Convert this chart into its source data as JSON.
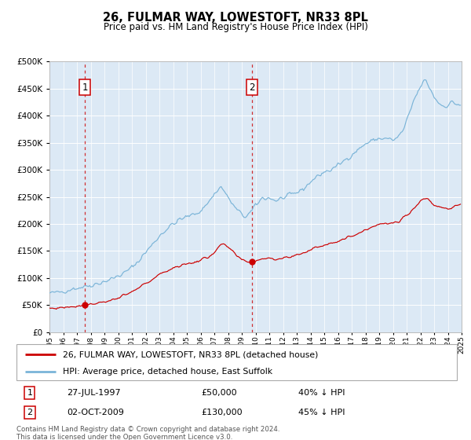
{
  "title": "26, FULMAR WAY, LOWESTOFT, NR33 8PL",
  "subtitle": "Price paid vs. HM Land Registry's House Price Index (HPI)",
  "legend_line1": "26, FULMAR WAY, LOWESTOFT, NR33 8PL (detached house)",
  "legend_line2": "HPI: Average price, detached house, East Suffolk",
  "sale1_date": "27-JUL-1997",
  "sale1_price": 50000,
  "sale1_hpi": "40% ↓ HPI",
  "sale1_year": 1997.57,
  "sale2_date": "02-OCT-2009",
  "sale2_price": 130000,
  "sale2_hpi": "45% ↓ HPI",
  "sale2_year": 2009.75,
  "hpi_color": "#7ab4d8",
  "price_color": "#cc0000",
  "plot_bg": "#dce9f5",
  "grid_color": "#ffffff",
  "spine_color": "#b0b0b0",
  "footnote": "Contains HM Land Registry data © Crown copyright and database right 2024.\nThis data is licensed under the Open Government Licence v3.0.",
  "ylim": [
    0,
    500000
  ],
  "hpi_keypoints_x": [
    1995.0,
    1995.5,
    1996.0,
    1996.5,
    1997.0,
    1997.5,
    1998.0,
    1998.5,
    1999.0,
    1999.5,
    2000.0,
    2000.5,
    2001.0,
    2001.5,
    2002.0,
    2002.5,
    2003.0,
    2003.5,
    2004.0,
    2004.5,
    2005.0,
    2005.5,
    2006.0,
    2006.5,
    2007.0,
    2007.3,
    2007.5,
    2007.8,
    2008.0,
    2008.3,
    2008.5,
    2008.8,
    2009.0,
    2009.3,
    2009.5,
    2009.8,
    2010.0,
    2010.3,
    2010.5,
    2010.8,
    2011.0,
    2011.3,
    2011.5,
    2011.8,
    2012.0,
    2012.5,
    2013.0,
    2013.5,
    2014.0,
    2014.5,
    2015.0,
    2015.5,
    2016.0,
    2016.5,
    2017.0,
    2017.5,
    2018.0,
    2018.5,
    2019.0,
    2019.5,
    2020.0,
    2020.3,
    2020.5,
    2020.8,
    2021.0,
    2021.3,
    2021.5,
    2021.8,
    2022.0,
    2022.2,
    2022.4,
    2022.6,
    2022.8,
    2023.0,
    2023.3,
    2023.5,
    2023.8,
    2024.0,
    2024.3,
    2024.6,
    2024.9
  ],
  "hpi_keypoints_y": [
    72000,
    73000,
    76000,
    79000,
    82000,
    84000,
    87000,
    90000,
    94000,
    98000,
    104000,
    110000,
    120000,
    132000,
    148000,
    162000,
    178000,
    190000,
    200000,
    208000,
    213000,
    218000,
    224000,
    238000,
    255000,
    265000,
    268000,
    258000,
    248000,
    238000,
    230000,
    222000,
    218000,
    213000,
    218000,
    225000,
    235000,
    242000,
    248000,
    248000,
    248000,
    245000,
    243000,
    246000,
    248000,
    252000,
    258000,
    265000,
    278000,
    288000,
    296000,
    300000,
    308000,
    318000,
    328000,
    338000,
    348000,
    354000,
    358000,
    358000,
    355000,
    358000,
    365000,
    375000,
    390000,
    410000,
    428000,
    442000,
    453000,
    462000,
    465000,
    455000,
    445000,
    435000,
    425000,
    420000,
    418000,
    420000,
    425000,
    422000,
    420000
  ],
  "price_keypoints_x": [
    1995.0,
    1995.5,
    1996.0,
    1996.5,
    1997.0,
    1997.3,
    1997.57,
    1997.8,
    1998.0,
    1998.5,
    1999.0,
    1999.5,
    2000.0,
    2000.5,
    2001.0,
    2001.5,
    2002.0,
    2002.5,
    2003.0,
    2003.5,
    2004.0,
    2004.5,
    2005.0,
    2005.5,
    2006.0,
    2006.5,
    2007.0,
    2007.3,
    2007.5,
    2007.8,
    2008.0,
    2008.3,
    2008.5,
    2008.8,
    2009.0,
    2009.3,
    2009.5,
    2009.75,
    2009.9,
    2010.0,
    2010.3,
    2010.5,
    2010.8,
    2011.0,
    2011.3,
    2011.5,
    2011.8,
    2012.0,
    2012.5,
    2013.0,
    2013.5,
    2014.0,
    2014.5,
    2015.0,
    2015.5,
    2016.0,
    2016.5,
    2017.0,
    2017.5,
    2018.0,
    2018.5,
    2019.0,
    2019.5,
    2020.0,
    2020.5,
    2021.0,
    2021.5,
    2022.0,
    2022.3,
    2022.5,
    2022.8,
    2023.0,
    2023.5,
    2024.0,
    2024.5,
    2024.9
  ],
  "price_keypoints_y": [
    44000,
    44500,
    46000,
    47000,
    48500,
    49500,
    50000,
    51000,
    52000,
    54000,
    56500,
    59000,
    63000,
    68000,
    74000,
    82000,
    90000,
    98000,
    106000,
    113000,
    119000,
    123000,
    126000,
    129000,
    133000,
    138000,
    148000,
    156000,
    162000,
    160000,
    157000,
    150000,
    144000,
    137000,
    133000,
    131000,
    130500,
    130000,
    131000,
    131500,
    134000,
    136000,
    137000,
    138000,
    136000,
    135000,
    136000,
    137000,
    139000,
    143000,
    147000,
    152000,
    157000,
    162000,
    165000,
    169000,
    172000,
    178000,
    183000,
    190000,
    195000,
    199000,
    201000,
    200000,
    206000,
    217000,
    228000,
    242000,
    247000,
    248000,
    240000,
    234000,
    232000,
    228000,
    232000,
    235000
  ]
}
